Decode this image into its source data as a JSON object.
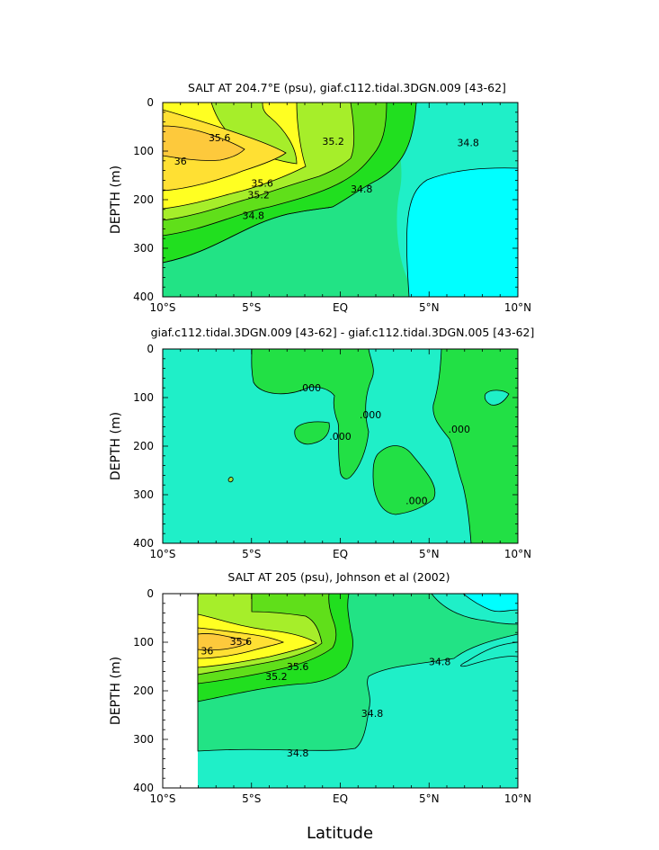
{
  "chart_data": [
    {
      "type": "contour",
      "title": "SALT AT 204.7°E (psu), giaf.c112.tidal.3DGN.009 [43-62]",
      "ylabel": "DEPTH (m)",
      "xlabel": "",
      "x_ticks": [
        "10°S",
        "5°S",
        "EQ",
        "5°N",
        "10°N"
      ],
      "y_ticks": [
        "0",
        "100",
        "200",
        "300",
        "400"
      ],
      "xlim": [
        -10,
        10
      ],
      "ylim": [
        0,
        400
      ],
      "y_reversed": true,
      "levels": [
        34.6,
        34.8,
        35.0,
        35.2,
        35.4,
        35.6,
        35.8,
        36.0
      ],
      "contour_labels": [
        {
          "text": "35.6",
          "x": -6.8,
          "y": 72
        },
        {
          "text": "36",
          "x": -9.0,
          "y": 120
        },
        {
          "text": "35.2",
          "x": -0.4,
          "y": 80
        },
        {
          "text": "34.8",
          "x": 7.2,
          "y": 82
        },
        {
          "text": "35.6",
          "x": -4.4,
          "y": 166
        },
        {
          "text": "35.2",
          "x": -4.6,
          "y": 190
        },
        {
          "text": "34.8",
          "x": 1.2,
          "y": 178
        },
        {
          "text": "34.8",
          "x": -4.9,
          "y": 232
        }
      ]
    },
    {
      "type": "contour",
      "title": "giaf.c112.tidal.3DGN.009 [43-62] - giaf.c112.tidal.3DGN.005 [43-62]",
      "ylabel": "DEPTH (m)",
      "xlabel": "",
      "x_ticks": [
        "10°S",
        "5°S",
        "EQ",
        "5°N",
        "10°N"
      ],
      "y_ticks": [
        "0",
        "100",
        "200",
        "300",
        "400"
      ],
      "xlim": [
        -10,
        10
      ],
      "ylim": [
        0,
        400
      ],
      "y_reversed": true,
      "levels": [
        0.0
      ],
      "contour_labels": [
        {
          "text": ".000",
          "x": -1.7,
          "y": 80
        },
        {
          "text": ".000",
          "x": 1.7,
          "y": 135
        },
        {
          "text": ".000",
          "x": 0.0,
          "y": 180
        },
        {
          "text": ".000",
          "x": 6.7,
          "y": 165
        },
        {
          "text": ".000",
          "x": 4.3,
          "y": 312
        }
      ]
    },
    {
      "type": "contour",
      "title": "SALT AT 205 (psu), Johnson et al (2002)",
      "ylabel": "DEPTH (m)",
      "xlabel": "Latitude",
      "x_ticks": [
        "10°S",
        "5°S",
        "EQ",
        "5°N",
        "10°N"
      ],
      "y_ticks": [
        "0",
        "100",
        "200",
        "300",
        "400"
      ],
      "xlim": [
        -10,
        10
      ],
      "ylim": [
        0,
        400
      ],
      "y_reversed": true,
      "data_xrange": [
        -8,
        10
      ],
      "data_yrange": [
        10,
        400
      ],
      "levels": [
        34.6,
        34.8,
        35.0,
        35.2,
        35.4,
        35.6,
        35.8,
        36.0
      ],
      "contour_labels": [
        {
          "text": "36",
          "x": -7.5,
          "y": 118
        },
        {
          "text": "35.6",
          "x": -5.6,
          "y": 98
        },
        {
          "text": "35.6",
          "x": -2.4,
          "y": 150
        },
        {
          "text": "35.2",
          "x": -3.6,
          "y": 170
        },
        {
          "text": "34.8",
          "x": 5.6,
          "y": 140
        },
        {
          "text": "34.8",
          "x": 1.8,
          "y": 246
        },
        {
          "text": "34.8",
          "x": -2.4,
          "y": 328
        }
      ]
    }
  ],
  "colors": {
    "c36": "#fdc93c",
    "c358": "#ffe033",
    "c356": "#ffff22",
    "c354": "#a6ee2a",
    "c352": "#60df1a",
    "c35": "#21df1f",
    "c348": "#22e385",
    "c346": "#1fefc8",
    "c344": "#00ffff",
    "c342": "#39e4f9",
    "diff_pos": "#22e045",
    "diff_neg": "#1fefc8",
    "diff_spot": "#9de53a"
  }
}
